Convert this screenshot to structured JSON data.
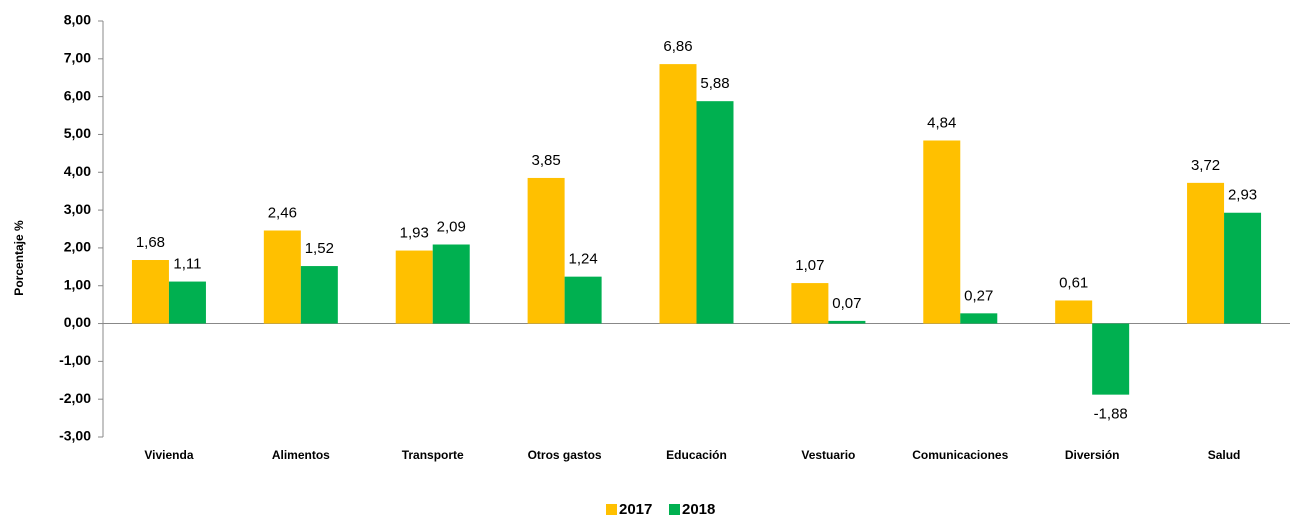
{
  "chart_data": {
    "type": "bar",
    "y_label": "Porcentaje %",
    "categories": [
      "Vivienda",
      "Alimentos",
      "Transporte",
      "Otros gastos",
      "Educación",
      "Vestuario",
      "Comunicaciones",
      "Diversión",
      "Salud"
    ],
    "series": [
      {
        "name": "2017",
        "color": "#ffc000",
        "values": [
          1.68,
          2.46,
          1.93,
          3.85,
          6.86,
          1.07,
          4.84,
          0.61,
          3.72
        ],
        "value_labels": [
          "1,68",
          "2,46",
          "1,93",
          "3,85",
          "6,86",
          "1,07",
          "4,84",
          "0,61",
          "3,72"
        ]
      },
      {
        "name": "2018",
        "color": "#00b050",
        "values": [
          1.11,
          1.52,
          2.09,
          1.24,
          5.88,
          0.07,
          0.27,
          -1.88,
          2.93
        ],
        "value_labels": [
          "1,11",
          "1,52",
          "2,09",
          "1,24",
          "5,88",
          "0,07",
          "0,27",
          "-1,88",
          "2,93"
        ]
      }
    ],
    "ylim": [
      -3,
      8
    ],
    "yticks": [
      {
        "value": -3,
        "label": "-3,00"
      },
      {
        "value": -2,
        "label": "-2,00"
      },
      {
        "value": -1,
        "label": "-1,00"
      },
      {
        "value": 0,
        "label": "0,00"
      },
      {
        "value": 1,
        "label": "1,00"
      },
      {
        "value": 2,
        "label": "2,00"
      },
      {
        "value": 3,
        "label": "3,00"
      },
      {
        "value": 4,
        "label": "4,00"
      },
      {
        "value": 5,
        "label": "5,00"
      },
      {
        "value": 6,
        "label": "6,00"
      },
      {
        "value": 7,
        "label": "7,00"
      },
      {
        "value": 8,
        "label": "8,00"
      }
    ],
    "legend": "bottom"
  }
}
